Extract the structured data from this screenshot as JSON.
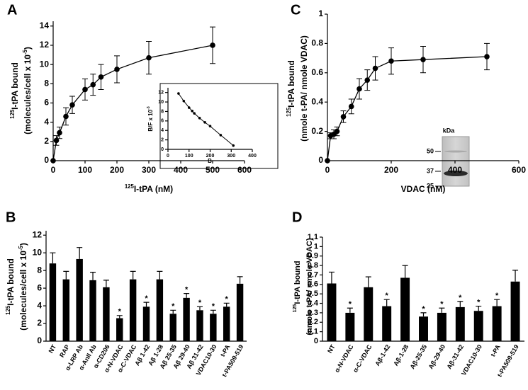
{
  "chart_data": [
    {
      "type": "line",
      "panel": "A",
      "ylabel": [
        [
          {
            "t": "125",
            "sup": true
          },
          {
            "t": "I-tPA bound"
          }
        ],
        [
          {
            "t": "(molecules/cell x 10"
          },
          {
            "t": "-5",
            "sup": true
          },
          {
            "t": ")"
          }
        ]
      ],
      "xlabel": [
        [
          {
            "t": "125",
            "sup": true
          },
          {
            "t": "I-tPA (nM)"
          }
        ]
      ],
      "x": [
        0,
        10,
        20,
        40,
        60,
        100,
        125,
        150,
        200,
        300,
        500
      ],
      "values": [
        0,
        2.1,
        2.9,
        4.6,
        5.8,
        7.4,
        7.9,
        8.7,
        9.5,
        10.7,
        12.0
      ],
      "errors": [
        0,
        0.5,
        0.6,
        0.9,
        0.9,
        1.1,
        1.1,
        1.3,
        1.4,
        1.7,
        1.9
      ],
      "color": "#000000",
      "xlim": [
        0,
        600
      ],
      "xticks": [
        0,
        100,
        200,
        300,
        400,
        500,
        600
      ],
      "ylim": [
        0,
        14.5
      ],
      "yticks": [
        0,
        2,
        4,
        6,
        8,
        10,
        12,
        14
      ],
      "inset": {
        "type": "line",
        "ylabel": [
          [
            {
              "t": "B/F x 10"
            },
            {
              "t": "-3",
              "sup": true
            }
          ]
        ],
        "xlabel": [
          [
            {
              "t": "B"
            }
          ]
        ],
        "x": [
          50,
          75,
          100,
          115,
          125,
          150,
          175,
          200,
          250,
          310
        ],
        "values": [
          11.8,
          10.2,
          8.8,
          8.1,
          7.6,
          6.6,
          5.7,
          4.9,
          3.0,
          0.8
        ],
        "color": "#000000",
        "xlim": [
          0,
          400
        ],
        "xticks": [
          0,
          100,
          200,
          300,
          400
        ],
        "ylim": [
          0,
          13
        ],
        "yticks": [
          0,
          2,
          4,
          6,
          8,
          10,
          12
        ]
      }
    },
    {
      "type": "line",
      "panel": "C",
      "ylabel": [
        [
          {
            "t": "125",
            "sup": true
          },
          {
            "t": "I-tPA bound"
          }
        ],
        [
          {
            "t": "(nmole t-PA/ nmole VDAC)"
          }
        ]
      ],
      "xlabel": [
        [
          {
            "t": "VDAC (nM)"
          }
        ]
      ],
      "x": [
        0,
        10,
        20,
        30,
        50,
        75,
        100,
        125,
        150,
        200,
        300,
        500
      ],
      "values": [
        0,
        0.17,
        0.18,
        0.2,
        0.3,
        0.37,
        0.49,
        0.55,
        0.63,
        0.68,
        0.69,
        0.71
      ],
      "errors": [
        0,
        0.02,
        0.03,
        0.03,
        0.04,
        0.05,
        0.07,
        0.07,
        0.08,
        0.09,
        0.09,
        0.09
      ],
      "color": "#000000",
      "xlim": [
        0,
        600
      ],
      "xticks": [
        0,
        200,
        400,
        600
      ],
      "ylim": [
        0,
        1
      ],
      "yticks": [
        0,
        0.2,
        0.4,
        0.6,
        0.8,
        1
      ],
      "gel_unit": "kDa",
      "gel_markers": [
        "50",
        "37",
        "25"
      ]
    },
    {
      "type": "bar",
      "panel": "B",
      "ylabel": [
        [
          {
            "t": "125",
            "sup": true
          },
          {
            "t": "I-tPA bound"
          }
        ],
        [
          {
            "t": "(molecules/cell x 10"
          },
          {
            "t": "-5",
            "sup": true
          },
          {
            "t": ")"
          }
        ]
      ],
      "categories": [
        "NT",
        "RAP",
        "α-LRP Ab",
        "α-AnII Ab",
        "α-CD206",
        "α-N-VDAC",
        "α-C-VDAC",
        "Aβ 1-42",
        "Aβ 1-28",
        "Aβ 25-35",
        "Aβ 29-40",
        "Aβ 31-42",
        "VDAC10-30",
        "t-PA",
        "t-PA509-519"
      ],
      "values": [
        8.8,
        7.0,
        9.3,
        6.9,
        6.1,
        2.6,
        7.0,
        3.9,
        7.0,
        3.1,
        4.9,
        3.5,
        3.1,
        3.9,
        6.5
      ],
      "errors": [
        1.2,
        0.9,
        1.3,
        0.9,
        0.8,
        0.3,
        0.9,
        0.5,
        0.9,
        0.4,
        0.5,
        0.4,
        0.4,
        0.4,
        0.8
      ],
      "marked": [
        5,
        7,
        9,
        10,
        11,
        12,
        13
      ],
      "mark_label": "*",
      "color": "#000000",
      "ylim": [
        0,
        12.5
      ],
      "yticks": [
        0,
        2,
        4,
        6,
        8,
        10,
        12
      ]
    },
    {
      "type": "bar",
      "panel": "D",
      "ylabel": [
        [
          {
            "t": "125",
            "sup": true
          },
          {
            "t": "I-tPA bound"
          }
        ],
        [
          {
            "t": "(nmole t-PA/ nmole VDAC)"
          }
        ]
      ],
      "categories": [
        "NT",
        "α-N-VDAC",
        "α-C-VDAC",
        "Aβ-1-42",
        "Aβ-1-28",
        "Aβ-25-35",
        "Aβ-29-40",
        "Aβ-31-42",
        "VDAC10-30",
        "t-PA",
        "t-PA509-519"
      ],
      "values": [
        0.61,
        0.3,
        0.57,
        0.37,
        0.67,
        0.26,
        0.3,
        0.36,
        0.32,
        0.37,
        0.63
      ],
      "errors": [
        0.12,
        0.05,
        0.11,
        0.07,
        0.13,
        0.04,
        0.05,
        0.06,
        0.05,
        0.07,
        0.12
      ],
      "marked": [
        1,
        3,
        5,
        6,
        7,
        8,
        9
      ],
      "mark_label": "*",
      "color": "#000000",
      "ylim": [
        0,
        1.1
      ],
      "yticks": [
        0,
        0.1,
        0.2,
        0.3,
        0.4,
        0.5,
        0.6,
        0.7,
        0.8,
        0.9,
        1,
        1.1
      ]
    }
  ]
}
